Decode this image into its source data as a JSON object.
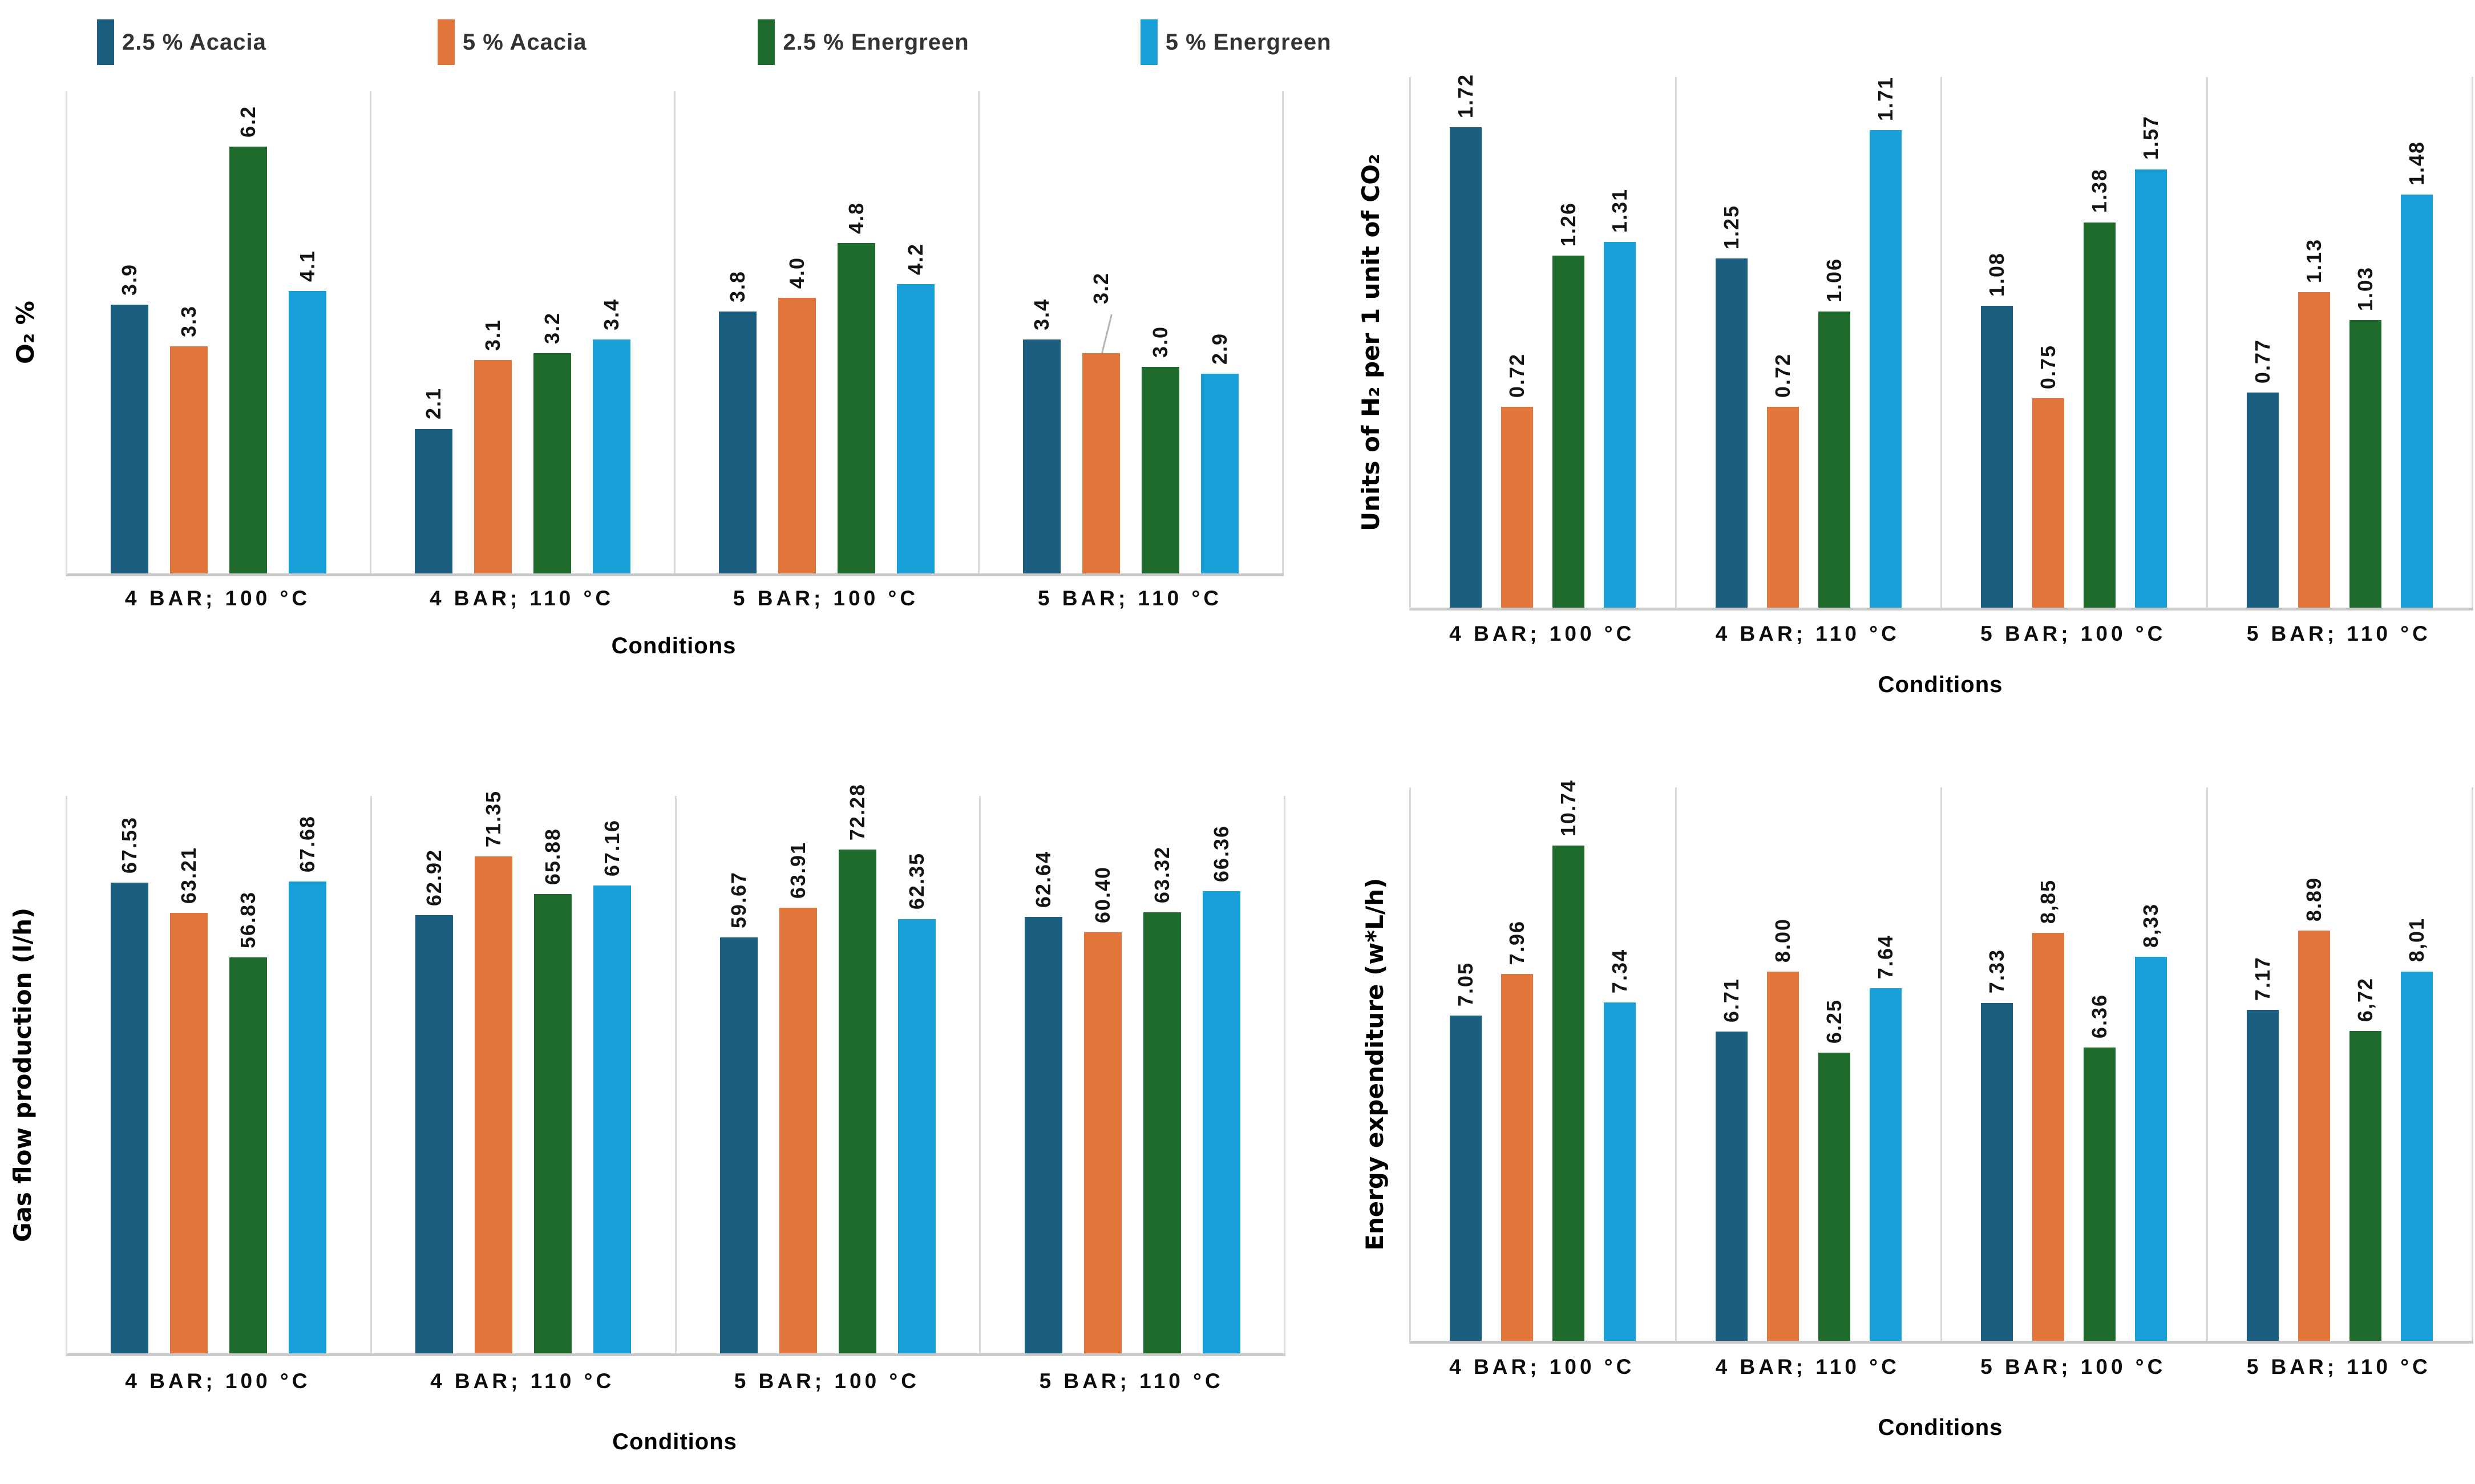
{
  "series": [
    {
      "name": "2.5 % Acacia",
      "color": "#1B5E80"
    },
    {
      "name": "5 % Acacia",
      "color": "#E2763A"
    },
    {
      "name": "2.5 % Energreen",
      "color": "#1E6B2B"
    },
    {
      "name": "5 % Energreen",
      "color": "#189FD8"
    }
  ],
  "categories": [
    "4 BAR; 100 °C",
    "4 BAR; 110 °C",
    "5 BAR; 100 °C",
    "5 BAR; 110 °C"
  ],
  "chart_data": [
    {
      "type": "bar",
      "ylabel": "O₂ %",
      "xlabel": "Conditions",
      "categories": [
        "4 BAR; 100 °C",
        "4 BAR; 110 °C",
        "5 BAR; 100 °C",
        "5 BAR; 110 °C"
      ],
      "ylim": [
        0,
        7
      ],
      "grid": false,
      "legend_position": "top",
      "series": [
        {
          "name": "2.5 % Acacia",
          "values": [
            3.9,
            2.1,
            3.8,
            3.4
          ],
          "labels": [
            "3.9",
            "2.1",
            "3.8",
            "3.4"
          ]
        },
        {
          "name": "5 % Acacia",
          "values": [
            3.3,
            3.1,
            4.0,
            3.2
          ],
          "labels": [
            "3.3",
            "3.1",
            "4.0",
            "3.2"
          ]
        },
        {
          "name": "2.5 % Energreen",
          "values": [
            6.2,
            3.2,
            4.8,
            3.0
          ],
          "labels": [
            "6.2",
            "3.2",
            "4.8",
            "3.0"
          ]
        },
        {
          "name": "5 % Energreen",
          "values": [
            4.1,
            3.4,
            4.2,
            2.9
          ],
          "labels": [
            "4.1",
            "3.4",
            "4.2",
            "2.9"
          ]
        }
      ],
      "leader": {
        "series": 1,
        "category": 3,
        "offset": 70
      }
    },
    {
      "type": "bar",
      "ylabel": "Units of H₂ per 1 unit of CO₂",
      "xlabel": "Conditions",
      "categories": [
        "4 BAR; 100 °C",
        "4 BAR; 110 °C",
        "5 BAR; 100 °C",
        "5 BAR; 110 °C"
      ],
      "ylim": [
        0,
        1.9
      ],
      "grid": false,
      "legend_position": "none",
      "series": [
        {
          "name": "2.5 % Acacia",
          "values": [
            1.72,
            1.25,
            1.08,
            0.77
          ],
          "labels": [
            "1.72",
            "1.25",
            "1.08",
            "0.77"
          ]
        },
        {
          "name": "5 % Acacia",
          "values": [
            0.72,
            0.72,
            0.75,
            1.13
          ],
          "labels": [
            "0.72",
            "0.72",
            "0.75",
            "1.13"
          ]
        },
        {
          "name": "2.5 % Energreen",
          "values": [
            1.26,
            1.06,
            1.38,
            1.03
          ],
          "labels": [
            "1.26",
            "1.06",
            "1.38",
            "1.03"
          ]
        },
        {
          "name": "5 % Energreen",
          "values": [
            1.31,
            1.71,
            1.57,
            1.48
          ],
          "labels": [
            "1.31",
            "1.71",
            "1.57",
            "1.48"
          ]
        }
      ]
    },
    {
      "type": "bar",
      "ylabel": "Gas flow production (l/h)",
      "xlabel": "Conditions",
      "categories": [
        "4 BAR; 100 °C",
        "4 BAR; 110 °C",
        "5 BAR; 100 °C",
        "5 BAR; 110 °C"
      ],
      "ylim": [
        0,
        80
      ],
      "grid": false,
      "legend_position": "none",
      "series": [
        {
          "name": "2.5 % Acacia",
          "values": [
            67.53,
            62.92,
            59.67,
            62.64
          ],
          "labels": [
            "67.53",
            "62.92",
            "59.67",
            "62.64"
          ]
        },
        {
          "name": "5 % Acacia",
          "values": [
            63.21,
            71.35,
            63.91,
            60.4
          ],
          "labels": [
            "63.21",
            "71.35",
            "63.91",
            "60.40"
          ]
        },
        {
          "name": "2.5 % Energreen",
          "values": [
            56.83,
            65.88,
            72.28,
            63.32
          ],
          "labels": [
            "56.83",
            "65.88",
            "72.28",
            "63.32"
          ]
        },
        {
          "name": "5 % Energreen",
          "values": [
            67.68,
            67.16,
            62.35,
            66.36
          ],
          "labels": [
            "67.68",
            "67.16",
            "62.35",
            "66.36"
          ]
        }
      ]
    },
    {
      "type": "bar",
      "ylabel": "Energy expenditure (w*L/h)",
      "xlabel": "Conditions",
      "categories": [
        "4 BAR; 100 °C",
        "4 BAR; 110 °C",
        "5 BAR; 100 °C",
        "5 BAR; 110 °C"
      ],
      "ylim": [
        0,
        12
      ],
      "grid": false,
      "legend_position": "none",
      "series": [
        {
          "name": "2.5 % Acacia",
          "values": [
            7.05,
            6.71,
            7.33,
            7.17
          ],
          "labels": [
            "7.05",
            "6.71",
            "7.33",
            "7.17"
          ]
        },
        {
          "name": "5 % Acacia",
          "values": [
            7.96,
            8.0,
            8.85,
            8.89
          ],
          "labels": [
            "7.96",
            "8.00",
            "8,85",
            "8.89"
          ]
        },
        {
          "name": "2.5 % Energreen",
          "values": [
            10.74,
            6.25,
            6.36,
            6.72
          ],
          "labels": [
            "10.74",
            "6.25",
            "6.36",
            "6,72"
          ]
        },
        {
          "name": "5 % Energreen",
          "values": [
            7.34,
            7.64,
            8.33,
            8.01
          ],
          "labels": [
            "7.34",
            "7.64",
            "8,33",
            "8,01"
          ]
        }
      ]
    }
  ]
}
